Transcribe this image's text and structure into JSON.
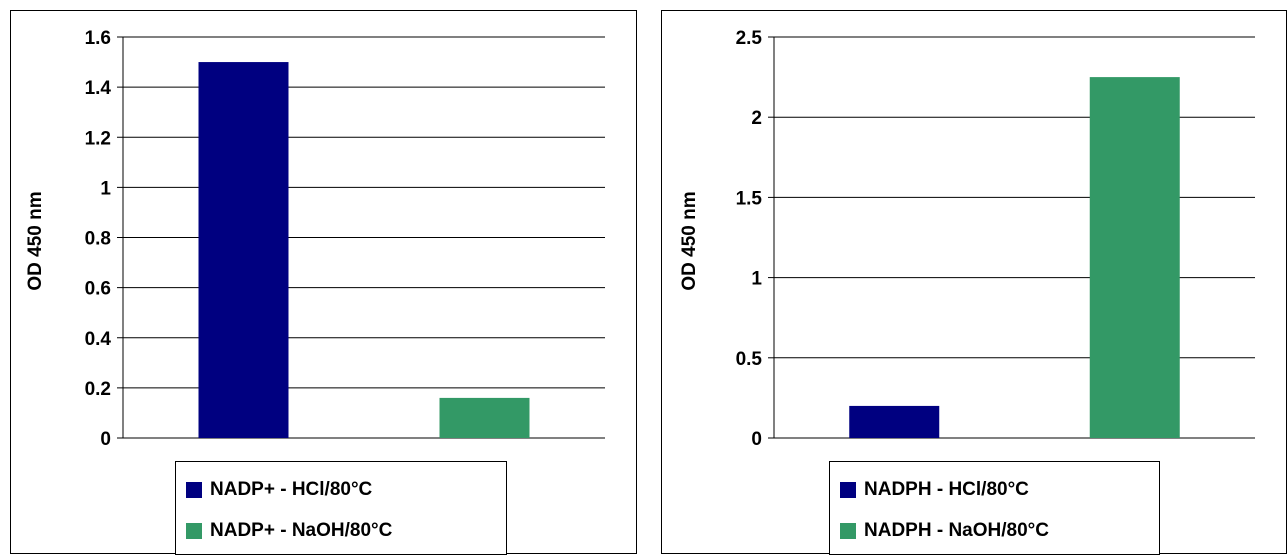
{
  "chart_data": [
    {
      "type": "bar",
      "categories": [
        "NADP+ - HCl/80°C",
        "NADP+ - NaOH/80°C"
      ],
      "values": [
        1.5,
        0.16
      ],
      "colors": [
        "#000080",
        "#339966"
      ],
      "ylabel": "OD 450 nm",
      "ylim": [
        0,
        1.6
      ],
      "yticks": [
        "0",
        "0.2",
        "0.4",
        "0.6",
        "0.8",
        "1",
        "1.2",
        "1.4",
        "1.6"
      ],
      "grid": true,
      "legend": [
        "NADP+ - HCl/80°C",
        "NADP+ - NaOH/80°C"
      ],
      "legend_position": "bottom"
    },
    {
      "type": "bar",
      "categories": [
        "NADPH - HCl/80°C",
        "NADPH - NaOH/80°C"
      ],
      "values": [
        0.2,
        2.25
      ],
      "colors": [
        "#000080",
        "#339966"
      ],
      "ylabel": "OD 450 nm",
      "ylim": [
        0,
        2.5
      ],
      "yticks": [
        "0",
        "0.5",
        "1",
        "1.5",
        "2",
        "2.5"
      ],
      "grid": true,
      "legend": [
        "NADPH - HCl/80°C",
        "NADPH - NaOH/80°C"
      ],
      "legend_position": "bottom"
    }
  ]
}
